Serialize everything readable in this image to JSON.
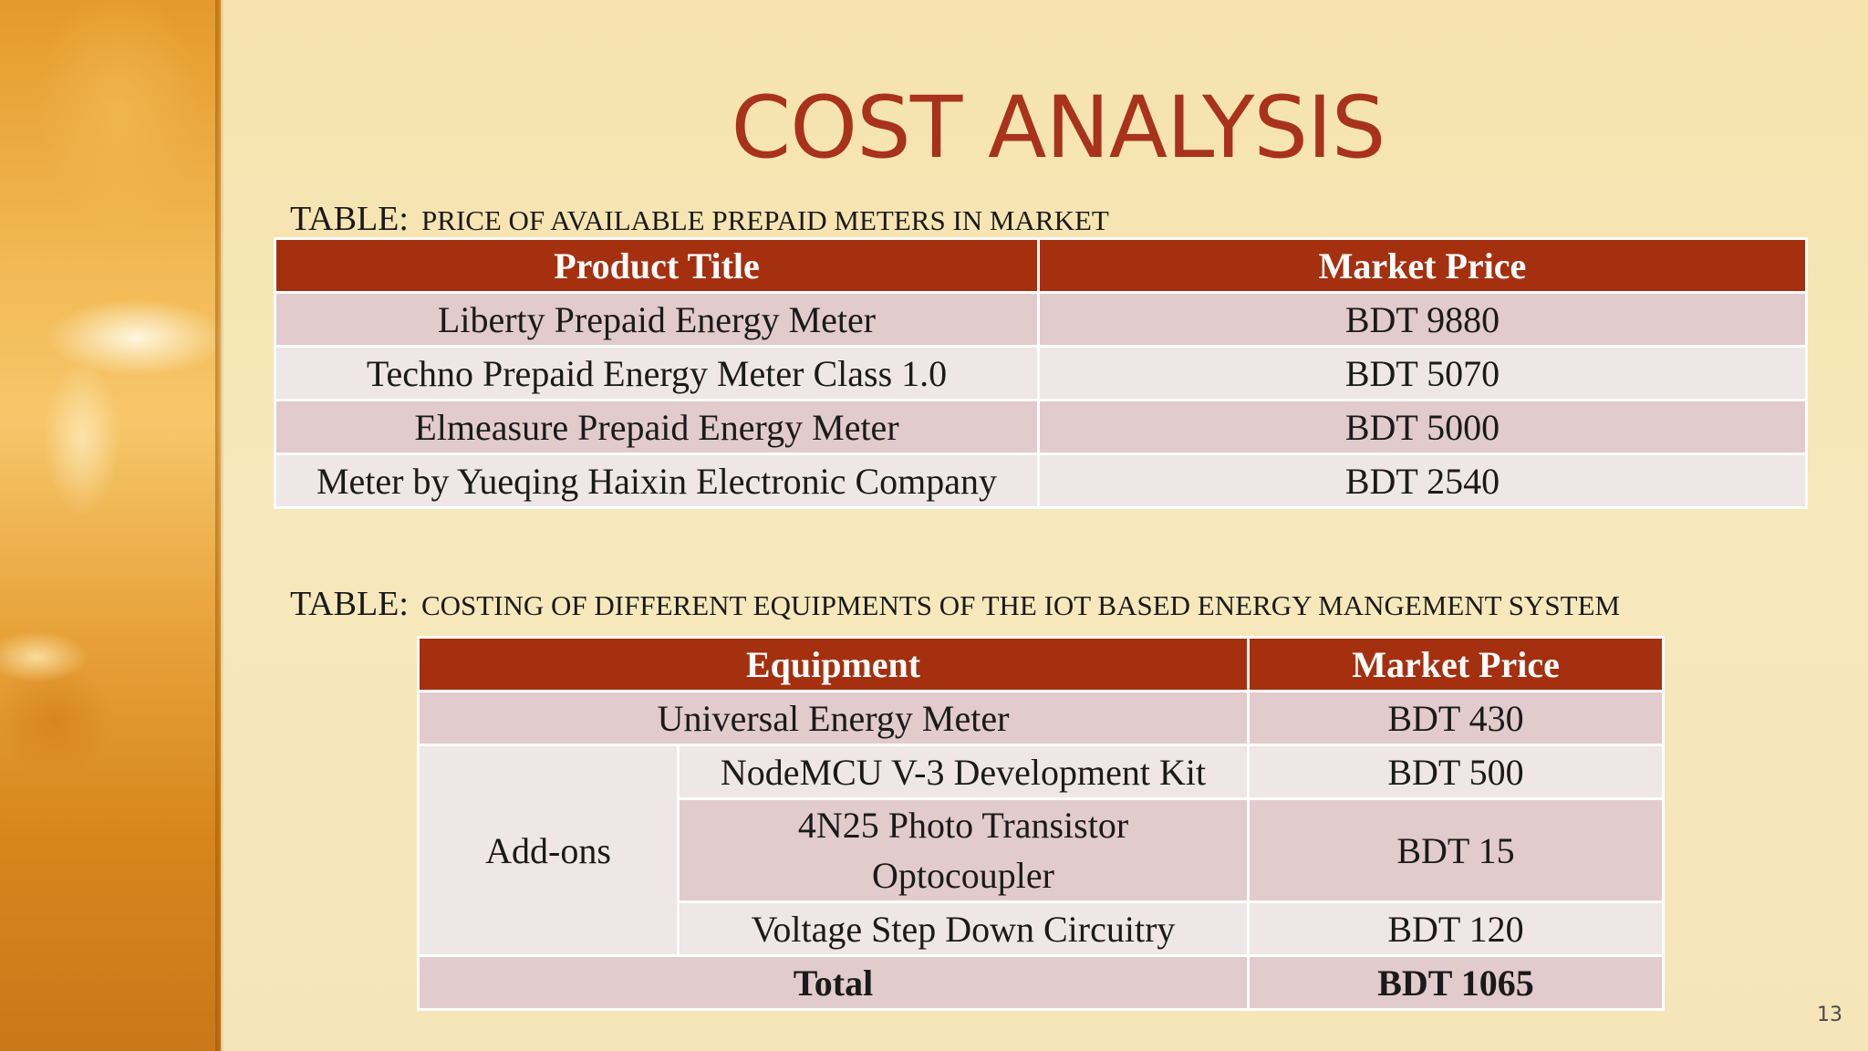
{
  "slide": {
    "title": "COST ANALYSIS",
    "page_number": "13",
    "colors": {
      "accent": "#a5300f",
      "title": "#a8321b",
      "background": "#f6e6b5",
      "row_dark": "#e2cbcd",
      "row_light": "#efe6e7"
    }
  },
  "table1": {
    "caption_lead": "TABLE:",
    "caption_text": "PRICE OF AVAILABLE PREPAID METERS IN MARKET",
    "headers": [
      "Product Title",
      "Market Price"
    ],
    "rows": [
      [
        "Liberty Prepaid Energy Meter",
        "BDT 9880"
      ],
      [
        "Techno Prepaid Energy Meter Class 1.0",
        "BDT 5070"
      ],
      [
        "Elmeasure Prepaid Energy Meter",
        "BDT 5000"
      ],
      [
        "Meter by Yueqing Haixin Electronic Company",
        "BDT 2540"
      ]
    ]
  },
  "table2": {
    "caption_lead": "TABLE:",
    "caption_text": "COSTING OF DIFFERENT EQUIPMENTS OF THE IOT BASED ENERGY MANGEMENT SYSTEM",
    "headers": [
      "Equipment",
      "Market Price"
    ],
    "main_item": {
      "name": "Universal Energy Meter",
      "price": "BDT 430"
    },
    "group_label": "Add-ons",
    "addons": [
      {
        "name": "NodeMCU V-3 Development Kit",
        "price": "BDT 500"
      },
      {
        "name_line1": "4N25 Photo Transistor",
        "name_line2": "Optocoupler",
        "price": "BDT 15"
      },
      {
        "name": "Voltage Step Down Circuitry",
        "price": "BDT 120"
      }
    ],
    "total": {
      "label": "Total",
      "price": "BDT 1065"
    }
  }
}
